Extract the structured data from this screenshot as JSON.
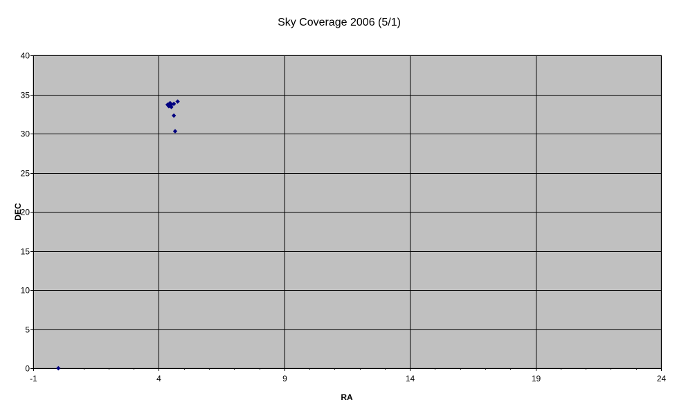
{
  "chart_data": {
    "type": "scatter",
    "title": "Sky Coverage 2006 (5/1)",
    "xlabel": "RA",
    "ylabel": "DEC",
    "xlim": [
      -1,
      24
    ],
    "ylim": [
      0,
      40
    ],
    "x_ticks": [
      -1,
      4,
      9,
      14,
      19,
      24
    ],
    "y_ticks": [
      0,
      5,
      10,
      15,
      20,
      25,
      30,
      35,
      40
    ],
    "grid": true,
    "legend": "none",
    "colors": {
      "plot_background": "#c0c0c0",
      "gridline": "#000000",
      "marker": "#000080"
    },
    "series": [
      {
        "points": [
          {
            "x": 0,
            "y": 0
          },
          {
            "x": 4.35,
            "y": 33.7
          },
          {
            "x": 4.4,
            "y": 33.5
          },
          {
            "x": 4.45,
            "y": 33.9
          },
          {
            "x": 4.5,
            "y": 33.4
          },
          {
            "x": 4.5,
            "y": 33.7
          },
          {
            "x": 4.6,
            "y": 33.8
          },
          {
            "x": 4.75,
            "y": 34.1
          },
          {
            "x": 4.6,
            "y": 32.3
          },
          {
            "x": 4.65,
            "y": 30.3
          }
        ]
      }
    ]
  }
}
